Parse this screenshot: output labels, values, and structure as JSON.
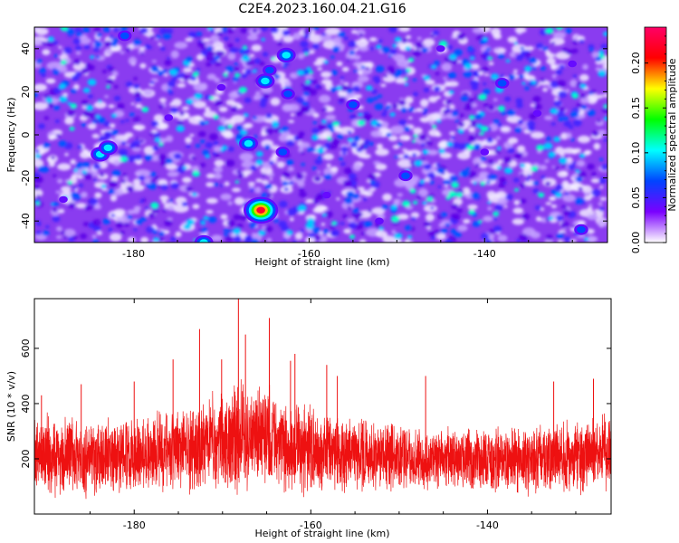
{
  "title": "C2E4.2023.160.04.21.G16",
  "chart_data": [
    {
      "type": "heatmap",
      "xlabel": "Height of straight line (km)",
      "ylabel": "Frequency (Hz)",
      "xlim": [
        -191.3,
        -126.0
      ],
      "ylim": [
        -50,
        50
      ],
      "xticks": [
        -180,
        -160,
        -140
      ],
      "yticks": [
        -40,
        -20,
        0,
        20,
        40
      ],
      "colorbar": {
        "label": "Normalized spectral amplitude",
        "range": [
          0.0,
          0.24
        ],
        "ticks": [
          "0.00",
          "0.05",
          "0.10",
          "0.15",
          "0.20"
        ],
        "colors": [
          "#ffffff",
          "#7a00ff",
          "#0044ff",
          "#00ffff",
          "#00ff00",
          "#ffff00",
          "#ff0000",
          "#ff0066"
        ]
      },
      "hotspots": [
        {
          "x": -165.5,
          "y": -35,
          "value": 0.24
        },
        {
          "x": -183.8,
          "y": -9,
          "value": 0.12
        },
        {
          "x": -182.9,
          "y": -6,
          "value": 0.1
        },
        {
          "x": -172.0,
          "y": -50,
          "value": 0.1
        },
        {
          "x": -166.9,
          "y": -4,
          "value": 0.1
        },
        {
          "x": -165.0,
          "y": 25,
          "value": 0.1
        },
        {
          "x": -164.5,
          "y": 30,
          "value": 0.09
        },
        {
          "x": -162.6,
          "y": 37,
          "value": 0.1
        },
        {
          "x": -162.4,
          "y": 19,
          "value": 0.08
        },
        {
          "x": -163.0,
          "y": -8,
          "value": 0.08
        },
        {
          "x": -181.0,
          "y": 46,
          "value": 0.07
        },
        {
          "x": -155.0,
          "y": 14,
          "value": 0.07
        },
        {
          "x": -149.0,
          "y": -19,
          "value": 0.07
        },
        {
          "x": -138.0,
          "y": 24,
          "value": 0.07
        },
        {
          "x": -129.0,
          "y": -44,
          "value": 0.07
        },
        {
          "x": -134.0,
          "y": 10,
          "value": 0.06
        },
        {
          "x": -145.0,
          "y": 40,
          "value": 0.06
        },
        {
          "x": -176.0,
          "y": 8,
          "value": 0.06
        },
        {
          "x": -188.0,
          "y": -30,
          "value": 0.06
        },
        {
          "x": -152.0,
          "y": -40,
          "value": 0.06
        },
        {
          "x": -140.0,
          "y": -8,
          "value": 0.06
        },
        {
          "x": -170.0,
          "y": 22,
          "value": 0.06
        },
        {
          "x": -158.0,
          "y": -28,
          "value": 0.06
        },
        {
          "x": -130.0,
          "y": 33,
          "value": 0.06
        }
      ]
    },
    {
      "type": "line",
      "xlabel": "Height of straight line (km)",
      "ylabel": "SNR (10 * v/v)",
      "xlim": [
        -191.3,
        -126.0
      ],
      "ylim": [
        0,
        780
      ],
      "xticks": [
        -180,
        -160,
        -140
      ],
      "yticks": [
        200,
        400,
        600
      ],
      "series": [
        {
          "color": "#ee1111",
          "envelope": {
            "x": [
              -191,
              -185,
              -180,
              -175,
              -170,
              -168,
              -165,
              -160,
              -155,
              -150,
              -145,
              -140,
              -135,
              -130,
              -126
            ],
            "upper": [
              390,
              350,
              370,
              400,
              470,
              500,
              480,
              400,
              360,
              340,
              330,
              330,
              330,
              360,
              380
            ],
            "lower": [
              50,
              50,
              60,
              70,
              60,
              50,
              60,
              60,
              70,
              70,
              70,
              60,
              60,
              60,
              60
            ]
          },
          "peaks": [
            {
              "x": -190.5,
              "y": 430
            },
            {
              "x": -175.6,
              "y": 560
            },
            {
              "x": -172.6,
              "y": 670
            },
            {
              "x": -170.1,
              "y": 560
            },
            {
              "x": -168.2,
              "y": 780
            },
            {
              "x": -167.4,
              "y": 650
            },
            {
              "x": -164.7,
              "y": 710
            },
            {
              "x": -161.8,
              "y": 580
            },
            {
              "x": -162.3,
              "y": 555
            },
            {
              "x": -158.2,
              "y": 540
            },
            {
              "x": -157.0,
              "y": 500
            },
            {
              "x": -147.0,
              "y": 500
            },
            {
              "x": -132.5,
              "y": 480
            },
            {
              "x": -128.0,
              "y": 490
            },
            {
              "x": -186.0,
              "y": 470
            },
            {
              "x": -180.0,
              "y": 480
            }
          ]
        }
      ]
    }
  ]
}
